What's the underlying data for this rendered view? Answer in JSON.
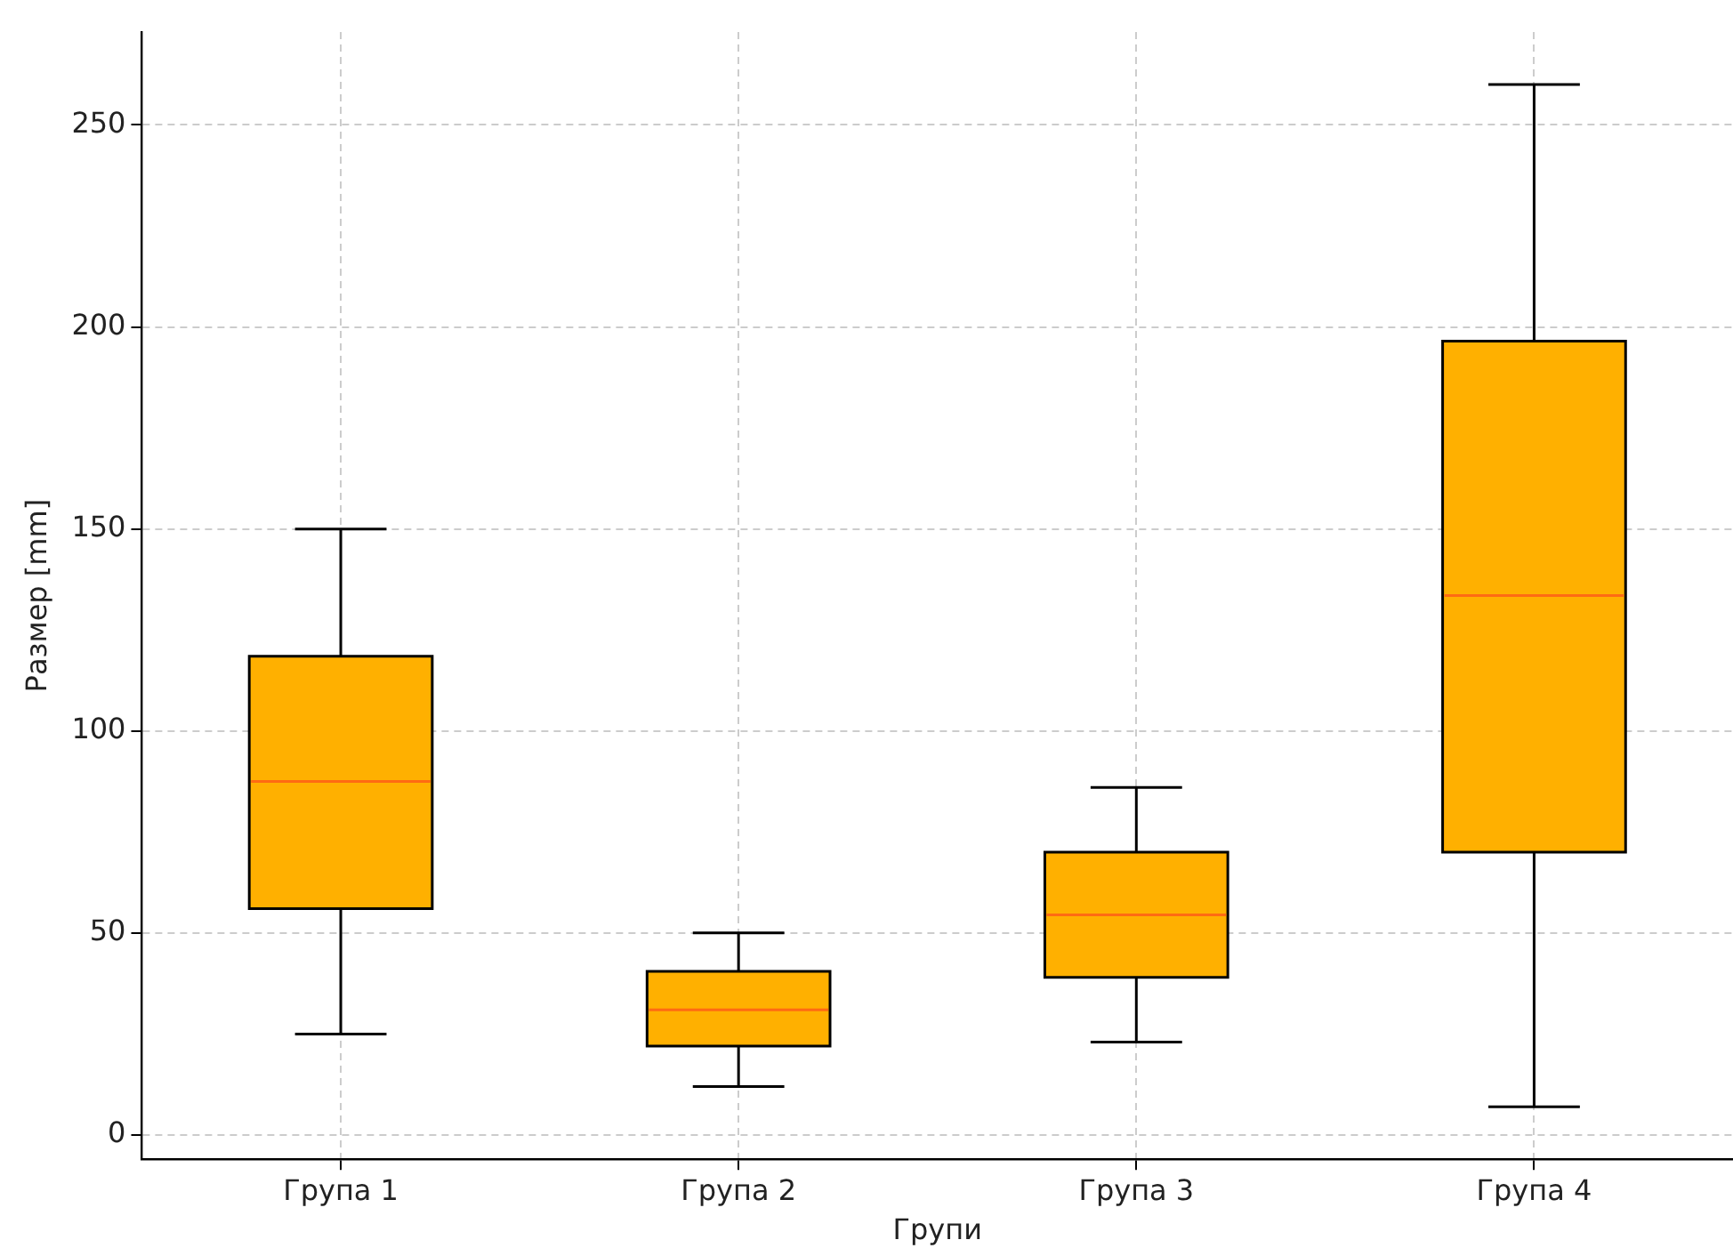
{
  "chart_data": {
    "type": "box",
    "xlabel": "Групи",
    "ylabel": "Размер [mm]",
    "categories": [
      "Група 1",
      "Група 2",
      "Група 3",
      "Група 4"
    ],
    "boxes": [
      {
        "low": 25,
        "q1": 56,
        "median": 87.5,
        "q3": 118.5,
        "high": 150
      },
      {
        "low": 12,
        "q1": 22,
        "median": 31,
        "q3": 40.5,
        "high": 50
      },
      {
        "low": 23,
        "q1": 39,
        "median": 54.5,
        "q3": 70,
        "high": 86
      },
      {
        "low": 7,
        "q1": 70,
        "median": 133.5,
        "q3": 196.5,
        "high": 260
      }
    ],
    "color": "#ffb000",
    "ylim": [
      -6,
      273
    ],
    "yticks": [
      0,
      50,
      100,
      150,
      200,
      250
    ],
    "grid": true
  }
}
